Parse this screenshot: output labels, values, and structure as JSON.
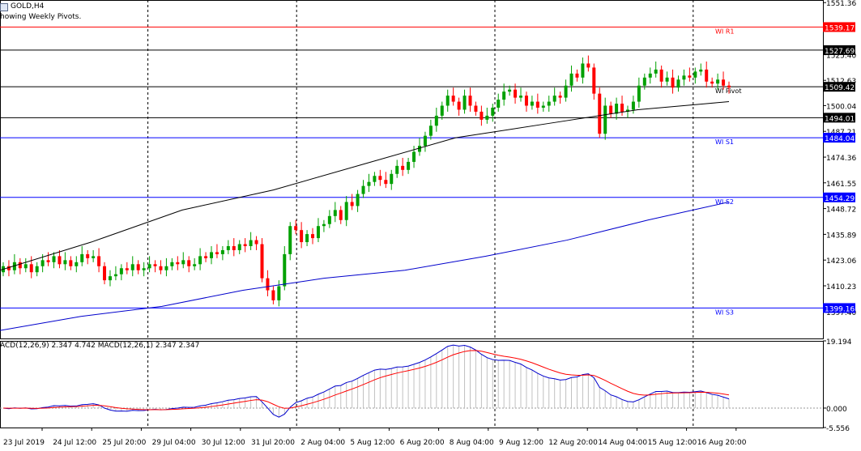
{
  "window": {
    "symbol": "GOLD,H4",
    "indicator_note": "howing Weekly Pivots."
  },
  "colors": {
    "bull": "#00a000",
    "bear": "#ff0000",
    "ma_fast": "#000000",
    "ma_slow": "#0000cc",
    "pivot_r": "#ff0000",
    "pivot_p": "#000000",
    "pivot_s": "#0000ff",
    "macd_main": "#0000cc",
    "macd_signal": "#ff0000",
    "macd_hist": "#c0c0c0"
  },
  "chart_data": {
    "type": "candlestick",
    "price_axis": {
      "min": 1384,
      "max": 1552.66,
      "ticks": [
        "1551.36",
        "1525.40",
        "1512.63",
        "1500.04",
        "1487.21",
        "1474.36",
        "1461.55",
        "1448.72",
        "1435.89",
        "1423.06",
        "1410.23",
        "1397.40"
      ]
    },
    "time_axis": {
      "labels": [
        "23 Jul 2019",
        "24 Jul 12:00",
        "25 Jul 20:00",
        "29 Jul 04:00",
        "30 Jul 12:00",
        "31 Jul 20:00",
        "2 Aug 04:00",
        "5 Aug 12:00",
        "6 Aug 20:00",
        "8 Aug 04:00",
        "9 Aug 12:00",
        "12 Aug 20:00",
        "14 Aug 04:00",
        "15 Aug 12:00",
        "16 Aug 20:00"
      ],
      "separators": [
        "29 Jul 04:00",
        "2 Aug 04:00",
        "9 Aug 12:00",
        "16 Aug 20:00"
      ]
    },
    "pivot_lines": [
      {
        "name": "WI R1",
        "value": 1539.17,
        "label": "1539.17",
        "kind": "r"
      },
      {
        "name": "",
        "value": 1527.69,
        "label": "1527.69",
        "kind": "p"
      },
      {
        "name": "WI Pivot",
        "value": 1509.42,
        "label": "1509.42",
        "kind": "p"
      },
      {
        "name": "",
        "value": 1494.01,
        "label": "1494.01",
        "kind": "p"
      },
      {
        "name": "WI S1",
        "value": 1484.04,
        "label": "1484.04",
        "kind": "s"
      },
      {
        "name": "WI S2",
        "value": 1454.29,
        "label": "1454.29",
        "kind": "s"
      },
      {
        "name": "WI S3",
        "value": 1399.16,
        "label": "1399.16",
        "kind": "s"
      }
    ],
    "closes": [
      1420,
      1418,
      1422,
      1419,
      1421,
      1417,
      1420,
      1423,
      1422,
      1425,
      1421,
      1423,
      1420,
      1422,
      1426,
      1424,
      1425,
      1420,
      1413,
      1415,
      1416,
      1419,
      1418,
      1421,
      1418,
      1419,
      1421,
      1420,
      1418,
      1420,
      1422,
      1421,
      1423,
      1420,
      1421,
      1425,
      1424,
      1427,
      1426,
      1428,
      1430,
      1428,
      1431,
      1430,
      1433,
      1431,
      1414,
      1408,
      1403,
      1410,
      1426,
      1440,
      1438,
      1432,
      1436,
      1434,
      1440,
      1441,
      1445,
      1448,
      1443,
      1452,
      1450,
      1456,
      1460,
      1462,
      1465,
      1463,
      1461,
      1466,
      1470,
      1468,
      1472,
      1477,
      1480,
      1485,
      1490,
      1495,
      1500,
      1505,
      1502,
      1498,
      1505,
      1500,
      1497,
      1493,
      1495,
      1499,
      1503,
      1507,
      1508,
      1504,
      1505,
      1500,
      1502,
      1499,
      1500,
      1502,
      1505,
      1504,
      1510,
      1516,
      1514,
      1521,
      1519,
      1506,
      1486,
      1500,
      1496,
      1501,
      1497,
      1498,
      1502,
      1510,
      1514,
      1516,
      1518,
      1512,
      1514,
      1509,
      1513,
      1515,
      1514,
      1517,
      1518,
      1512,
      1511,
      1513,
      1510,
      1509
    ],
    "ma_fast": [
      1418,
      1432,
      1448,
      1458,
      1471,
      1484,
      1491,
      1498,
      1502
    ],
    "ma_slow": [
      1388,
      1395,
      1400,
      1408,
      1414,
      1418,
      1425,
      1433,
      1443,
      1452
    ],
    "macd_panel": {
      "label": "ACD(12,26,9) 2.347 4.742 MACD(12,26,1) 2.347 2.347",
      "ticks": [
        "19.194",
        "0.000",
        "-5.556"
      ],
      "min": -5.556,
      "max": 19.194
    }
  }
}
